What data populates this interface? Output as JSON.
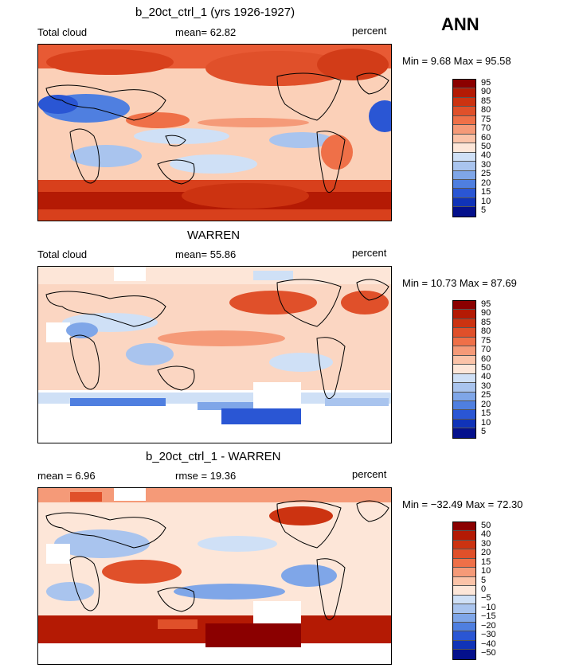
{
  "season": "ANN",
  "panels": [
    {
      "title": "b_20ct_ctrl_1 (yrs 1926-1927)",
      "left_label": "Total cloud",
      "center_label": "mean=   62.82",
      "right_label": "percent",
      "minmax": "Min =    9.68  Max =   95.58",
      "colorbar": {
        "labels": [
          "95",
          "90",
          "85",
          "80",
          "75",
          "70",
          "60",
          "50",
          "40",
          "30",
          "25",
          "20",
          "15",
          "10",
          "5"
        ],
        "colors": [
          "#8b0000",
          "#b41a04",
          "#cc3311",
          "#e0502a",
          "#ef7048",
          "#f59a78",
          "#fbc3a8",
          "#fde6d8",
          "#cfe0f6",
          "#a9c4ee",
          "#7fa6e8",
          "#4f7fe0",
          "#2a56d4",
          "#1033b8",
          "#04108c"
        ]
      }
    },
    {
      "title": "WARREN",
      "left_label": "Total cloud",
      "center_label": "mean=   55.86",
      "right_label": "percent",
      "minmax": "Min =   10.73  Max =   87.69",
      "colorbar": {
        "labels": [
          "95",
          "90",
          "85",
          "80",
          "75",
          "70",
          "60",
          "50",
          "40",
          "30",
          "25",
          "20",
          "15",
          "10",
          "5"
        ],
        "colors": [
          "#8b0000",
          "#b41a04",
          "#cc3311",
          "#e0502a",
          "#ef7048",
          "#f59a78",
          "#fbc3a8",
          "#fde6d8",
          "#cfe0f6",
          "#a9c4ee",
          "#7fa6e8",
          "#4f7fe0",
          "#2a56d4",
          "#1033b8",
          "#04108c"
        ]
      }
    },
    {
      "title": "b_20ct_ctrl_1 - WARREN",
      "left_label": "mean =    6.96",
      "center_label": "rmse =   19.36",
      "right_label": "percent",
      "minmax": "Min = −32.49  Max =   72.30",
      "colorbar": {
        "labels": [
          "50",
          "40",
          "30",
          "20",
          "15",
          "10",
          "5",
          "0",
          "−5",
          "−10",
          "−15",
          "−20",
          "−30",
          "−40",
          "−50"
        ],
        "colors": [
          "#8b0000",
          "#b41a04",
          "#cc3311",
          "#e0502a",
          "#ef7048",
          "#f59a78",
          "#fbc3a8",
          "#fde6d8",
          "#cfe0f6",
          "#a9c4ee",
          "#7fa6e8",
          "#4f7fe0",
          "#2a56d4",
          "#1033b8",
          "#04108c"
        ]
      }
    }
  ]
}
